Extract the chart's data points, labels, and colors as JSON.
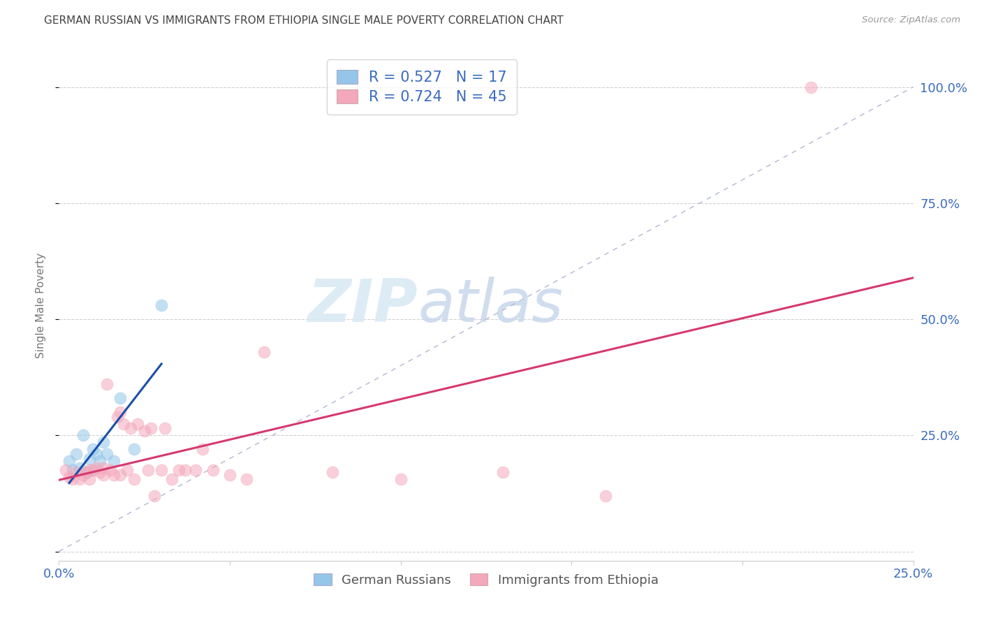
{
  "title": "GERMAN RUSSIAN VS IMMIGRANTS FROM ETHIOPIA SINGLE MALE POVERTY CORRELATION CHART",
  "source": "Source: ZipAtlas.com",
  "ylabel": "Single Male Poverty",
  "xlim": [
    0.0,
    0.25
  ],
  "ylim": [
    -0.02,
    1.08
  ],
  "xticks": [
    0.0,
    0.05,
    0.1,
    0.15,
    0.2,
    0.25
  ],
  "xticklabels": [
    "0.0%",
    "",
    "",
    "",
    "",
    "25.0%"
  ],
  "ytick_positions": [
    0.0,
    0.25,
    0.5,
    0.75,
    1.0
  ],
  "yticklabels": [
    "",
    "25.0%",
    "50.0%",
    "75.0%",
    "100.0%"
  ],
  "blue_color": "#93c6e8",
  "pink_color": "#f4a8bc",
  "blue_line_color": "#1a4faa",
  "pink_line_color": "#d63870",
  "diagonal_color": "#b0b8d0",
  "legend_blue_label": "R = 0.527   N = 17",
  "legend_pink_label": "R = 0.724   N = 45",
  "legend_blue_group": "German Russians",
  "legend_pink_group": "Immigrants from Ethiopia",
  "watermark_zip": "ZIP",
  "watermark_atlas": "atlas",
  "axis_label_color": "#3a6bbf",
  "title_color": "#444444",
  "grid_color": "#d0d0d0",
  "blue_scatter_x": [
    0.003,
    0.004,
    0.005,
    0.006,
    0.007,
    0.008,
    0.009,
    0.01,
    0.01,
    0.011,
    0.012,
    0.013,
    0.014,
    0.016,
    0.018,
    0.022,
    0.03
  ],
  "blue_scatter_y": [
    0.195,
    0.175,
    0.21,
    0.18,
    0.25,
    0.17,
    0.2,
    0.22,
    0.175,
    0.21,
    0.195,
    0.235,
    0.21,
    0.195,
    0.33,
    0.22,
    0.53
  ],
  "pink_scatter_x": [
    0.002,
    0.003,
    0.004,
    0.005,
    0.006,
    0.007,
    0.008,
    0.009,
    0.009,
    0.01,
    0.011,
    0.012,
    0.013,
    0.013,
    0.014,
    0.015,
    0.016,
    0.017,
    0.018,
    0.018,
    0.019,
    0.02,
    0.021,
    0.022,
    0.023,
    0.025,
    0.026,
    0.027,
    0.028,
    0.03,
    0.031,
    0.033,
    0.035,
    0.037,
    0.04,
    0.042,
    0.045,
    0.05,
    0.055,
    0.06,
    0.08,
    0.1,
    0.13,
    0.16,
    0.22
  ],
  "pink_scatter_y": [
    0.175,
    0.16,
    0.155,
    0.17,
    0.155,
    0.165,
    0.17,
    0.175,
    0.155,
    0.175,
    0.18,
    0.17,
    0.18,
    0.165,
    0.36,
    0.175,
    0.165,
    0.29,
    0.165,
    0.3,
    0.275,
    0.175,
    0.265,
    0.155,
    0.275,
    0.26,
    0.175,
    0.265,
    0.12,
    0.175,
    0.265,
    0.155,
    0.175,
    0.175,
    0.175,
    0.22,
    0.175,
    0.165,
    0.155,
    0.43,
    0.17,
    0.155,
    0.17,
    0.12,
    1.0
  ]
}
